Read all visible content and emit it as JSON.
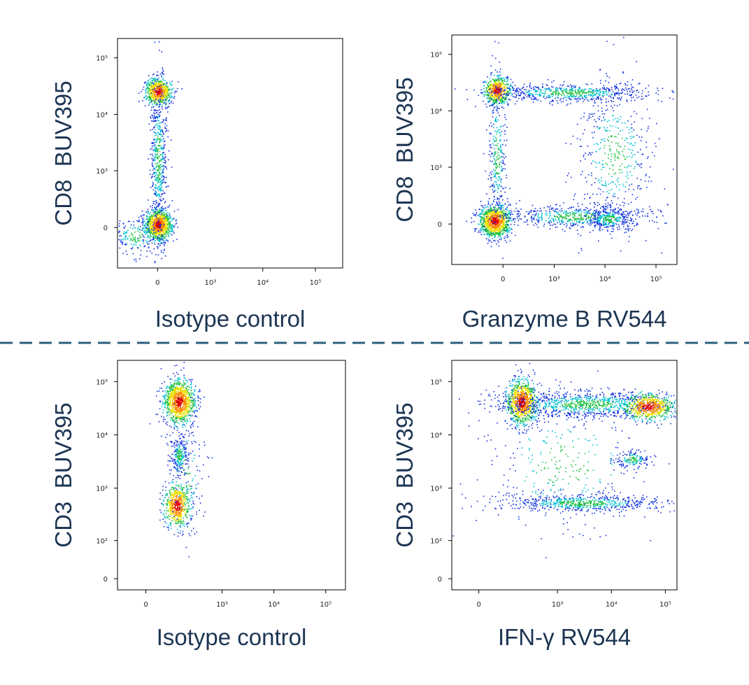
{
  "chart_data": [
    {
      "type": "scatter",
      "x_label": "Isotype control",
      "y_label": "CD8  BUV395",
      "xlim": [
        -560,
        330000
      ],
      "ylim": [
        -500,
        220000
      ],
      "xticks": [
        0,
        {
          "value": 1000,
          "label": "10³"
        },
        {
          "value": 10000,
          "label": "10⁴"
        },
        {
          "value": 100000,
          "label": "10⁵"
        }
      ],
      "yticks": [
        0,
        {
          "value": 1000,
          "label": "10³"
        },
        {
          "value": 10000,
          "label": "10⁴"
        },
        {
          "value": 100000,
          "label": "10⁵"
        }
      ]
    },
    {
      "type": "scatter",
      "x_label": "Granzyme B RV544",
      "y_label": "CD8  BUV395",
      "xlim": [
        -1000,
        258000
      ],
      "ylim": [
        -500,
        220000
      ],
      "xticks": [
        0,
        {
          "value": 1000,
          "label": "10³"
        },
        {
          "value": 10000,
          "label": "10⁴"
        },
        {
          "value": 100000,
          "label": "10⁵"
        }
      ],
      "yticks": [
        0,
        {
          "value": 1000,
          "label": "10³"
        },
        {
          "value": 10000,
          "label": "10⁴"
        },
        {
          "value": 100000,
          "label": "10⁵"
        }
      ]
    },
    {
      "type": "scatter",
      "x_label": "Isotype control",
      "y_label": "CD3  BUV395",
      "xlim": [
        -110,
        240000
      ],
      "ylim": [
        -20,
        250000
      ],
      "xticks": [
        0,
        {
          "value": 1000,
          "label": "10³"
        },
        {
          "value": 10000,
          "label": "10⁴"
        },
        {
          "value": 100000,
          "label": "10⁵"
        }
      ],
      "yticks": [
        0,
        {
          "value": 100,
          "label": "10²"
        },
        {
          "value": 1000,
          "label": "10³"
        },
        {
          "value": 10000,
          "label": "10⁴"
        },
        {
          "value": 100000,
          "label": "10⁵"
        }
      ]
    },
    {
      "type": "scatter",
      "x_label": "IFN-γ RV544",
      "y_label": "CD3  BUV395",
      "xlim": [
        -100,
        164000
      ],
      "ylim": [
        -20,
        250000
      ],
      "xticks": [
        0,
        {
          "value": 1000,
          "label": "10³"
        },
        {
          "value": 10000,
          "label": "10⁴"
        },
        {
          "value": 100000,
          "label": "10⁵"
        }
      ],
      "yticks": [
        0,
        {
          "value": 100,
          "label": "10²"
        },
        {
          "value": 1000,
          "label": "10³"
        },
        {
          "value": 10000,
          "label": "10⁴"
        },
        {
          "value": 100000,
          "label": "10⁵"
        }
      ]
    }
  ]
}
